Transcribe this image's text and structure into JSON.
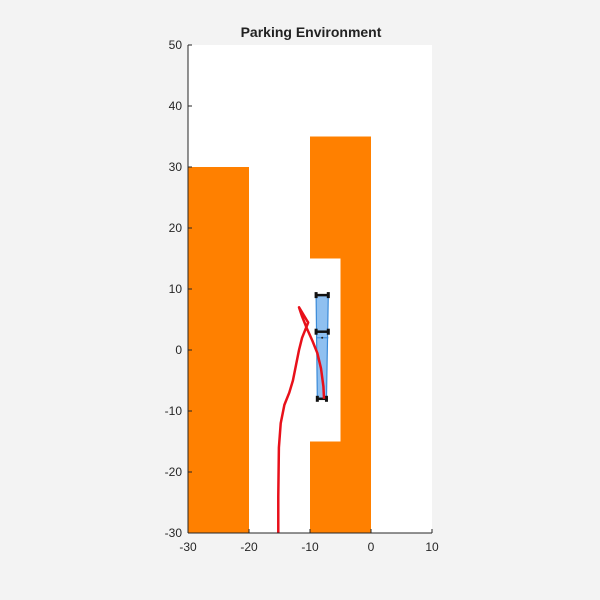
{
  "chart_data": {
    "type": "scatter",
    "title": "Parking Environment",
    "xlabel": "",
    "ylabel": "",
    "xlim": [
      -30,
      10
    ],
    "ylim": [
      -30,
      50
    ],
    "xticks": [
      -30,
      -20,
      -10,
      0,
      10
    ],
    "yticks": [
      -30,
      -20,
      -10,
      0,
      10,
      20,
      30,
      40,
      50
    ],
    "grid": false,
    "colors": {
      "obstacle": "#ff8000",
      "vehicle_fill": "#8fc0f0",
      "vehicle_edge": "#3a8ad8",
      "path": "#e8101a",
      "wheel": "#111111"
    },
    "obstacles": [
      {
        "name": "left-block",
        "x": [
          -30,
          -20
        ],
        "y": [
          -30,
          30
        ]
      },
      {
        "name": "right-top-block",
        "x": [
          -10,
          0
        ],
        "y": [
          15,
          35
        ]
      },
      {
        "name": "right-middle-block",
        "x": [
          -5,
          0
        ],
        "y": [
          -15,
          15
        ]
      },
      {
        "name": "right-bottom-block",
        "x": [
          -10,
          0
        ],
        "y": [
          -30,
          -15
        ]
      }
    ],
    "vehicle": {
      "corners": [
        [
          -9,
          9
        ],
        [
          -7,
          9
        ],
        [
          -7.3,
          -8
        ],
        [
          -8.8,
          -8
        ]
      ],
      "center": [
        -8,
        2
      ]
    },
    "path": {
      "x": [
        -15.2,
        -15.2,
        -15.1,
        -14.8,
        -14.2,
        -13.4,
        -12.8,
        -12.3,
        -11.8,
        -11.3,
        -10.9,
        -10.5,
        -10.3,
        -10.6,
        -11.2,
        -11.8,
        -11.3,
        -10.5,
        -9.6,
        -8.8,
        -8.2,
        -7.8,
        -7.7
      ],
      "y": [
        -30,
        -24,
        -16,
        -12,
        -9,
        -7,
        -5,
        -2.5,
        0,
        2,
        3,
        4,
        4.5,
        5,
        6,
        7,
        5.5,
        3.5,
        1.5,
        -0.5,
        -3,
        -6,
        -8
      ]
    }
  }
}
